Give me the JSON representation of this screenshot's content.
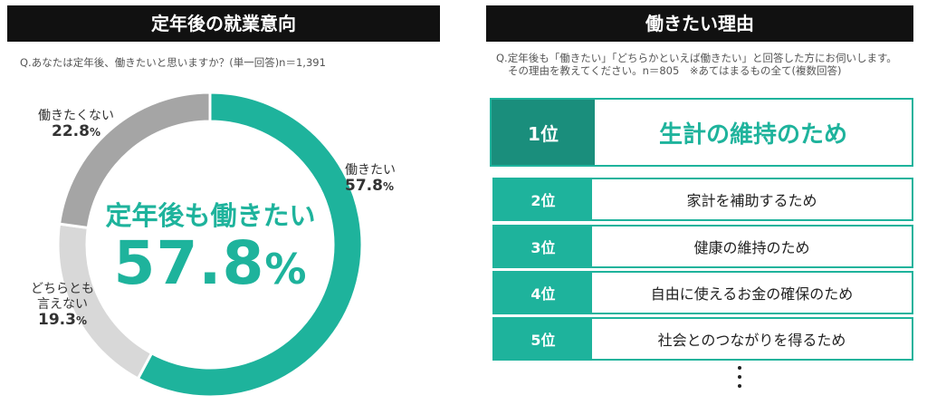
{
  "left_panel": {
    "title": "定年後の就業意向",
    "question": "Q.あなたは定年後、働きたいと思いますか？(単一回答)n＝1,391",
    "center_caption": "定年後も働きたい",
    "center_value": "57.8",
    "center_unit": "%"
  },
  "right_panel": {
    "title": "働きたい理由",
    "question_line1": "Q.定年後も「働きたい」「どちらかといえば働きたい」と回答した方にお伺いします。",
    "question_line2": "その理由を教えてください。n＝805　※あてはまるもの全て(複数回答)",
    "ranks": [
      {
        "rank": "1位",
        "reason": "生計の維持のため"
      },
      {
        "rank": "2位",
        "reason": "家計を補助するため"
      },
      {
        "rank": "3位",
        "reason": "健康の維持のため"
      },
      {
        "rank": "4位",
        "reason": "自由に使えるお金の確保のため"
      },
      {
        "rank": "5位",
        "reason": "社会とのつながりを得るため"
      }
    ]
  },
  "chart_data": {
    "type": "pie",
    "variant": "donut",
    "title": "定年後の就業意向",
    "unit": "%",
    "slices": [
      {
        "label": "働きたい",
        "value": 57.8,
        "value_text": "57.8",
        "color": "#1eb39c"
      },
      {
        "label": "どちらとも言えない",
        "label_line1": "どちらとも",
        "label_line2": "言えない",
        "value": 19.3,
        "value_text": "19.3",
        "color": "#d8d8d8"
      },
      {
        "label": "働きたくない",
        "value": 22.8,
        "value_text": "22.8",
        "color": "#a5a5a5"
      }
    ]
  },
  "colors": {
    "accent": "#1eb39c",
    "accent_dark": "#1a8e7c",
    "header_bg": "#111111"
  }
}
